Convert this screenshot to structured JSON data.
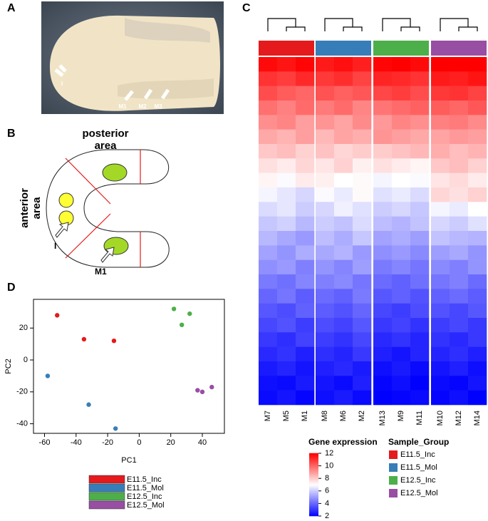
{
  "panel_labels": [
    "A",
    "B",
    "C",
    "D"
  ],
  "photo_labels": [
    "I",
    "M1",
    "M2",
    "M3"
  ],
  "diagram": {
    "posterior": [
      "posterior",
      "area"
    ],
    "anterior": [
      "anterior",
      "area"
    ],
    "incisor": "I",
    "molar": "M1"
  },
  "chart_data": [
    {
      "type": "scatter",
      "xlabel": "PC1",
      "ylabel": "PC2",
      "xlim": [
        -67,
        54
      ],
      "ylim": [
        -46,
        38
      ],
      "xticks": [
        -60,
        -40,
        -20,
        0,
        20,
        40
      ],
      "yticks": [
        -40,
        -20,
        0,
        20
      ],
      "series": [
        {
          "name": "E11.5_Inc",
          "color": "#e41a1c",
          "x": [
            -52,
            -35,
            -16
          ],
          "y": [
            28,
            13,
            12
          ]
        },
        {
          "name": "E11.5_Mol",
          "color": "#377eb8",
          "x": [
            -58,
            -32,
            -15
          ],
          "y": [
            -10,
            -28,
            -43
          ]
        },
        {
          "name": "E12.5_Inc",
          "color": "#4daf4a",
          "x": [
            22,
            32,
            27
          ],
          "y": [
            32,
            29,
            22
          ]
        },
        {
          "name": "E12.5_Mol",
          "color": "#984ea3",
          "x": [
            37,
            40,
            46
          ],
          "y": [
            -19,
            -20,
            -17
          ]
        }
      ]
    },
    {
      "type": "heatmap",
      "legend_title": "Sample_Group",
      "colorbar_title": "Gene expression",
      "clim": [
        2,
        12
      ],
      "cticks": [
        2,
        4,
        6,
        8,
        10,
        12
      ],
      "colors": [
        "#0000ff",
        "#ffffff",
        "#ff0000"
      ],
      "groups": [
        {
          "name": "E11.5_Inc",
          "color": "#e41a1c",
          "columns": [
            "M7",
            "M5",
            "M1"
          ]
        },
        {
          "name": "E11.5_Mol",
          "color": "#377eb8",
          "columns": [
            "M8",
            "M6",
            "M2"
          ]
        },
        {
          "name": "E12.5_Inc",
          "color": "#4daf4a",
          "columns": [
            "M13",
            "M9",
            "M11"
          ]
        },
        {
          "name": "E12.5_Mol",
          "color": "#984ea3",
          "columns": [
            "M10",
            "M12",
            "M14"
          ]
        }
      ],
      "values": [
        [
          11.8,
          11.6,
          11.9,
          11.5,
          11.7,
          11.4,
          11.9,
          12.0,
          11.8,
          12.1,
          12.2,
          12.0
        ],
        [
          11.0,
          10.8,
          11.2,
          10.9,
          11.1,
          10.7,
          11.3,
          11.2,
          11.0,
          11.5,
          11.4,
          11.6
        ],
        [
          10.5,
          10.2,
          10.0,
          10.4,
          10.1,
          10.3,
          10.6,
          10.8,
          10.5,
          10.9,
          11.0,
          10.7
        ],
        [
          9.8,
          9.5,
          9.9,
          9.6,
          9.9,
          9.4,
          9.7,
          9.9,
          10.1,
          10.2,
          10.0,
          10.3
        ],
        [
          9.2,
          9.4,
          8.9,
          9.1,
          8.8,
          9.3,
          9.0,
          9.4,
          9.2,
          9.5,
          9.6,
          9.3
        ],
        [
          8.7,
          8.5,
          8.9,
          8.4,
          8.8,
          8.6,
          9.1,
          8.9,
          8.7,
          8.8,
          9.0,
          8.9
        ],
        [
          8.1,
          8.3,
          7.9,
          8.2,
          7.8,
          8.0,
          8.0,
          8.2,
          8.4,
          8.6,
          8.3,
          8.5
        ],
        [
          7.6,
          7.4,
          7.8,
          7.5,
          7.9,
          7.3,
          7.6,
          7.4,
          7.2,
          8.1,
          8.3,
          7.9
        ],
        [
          7.2,
          6.9,
          7.4,
          7.3,
          7.0,
          7.1,
          6.8,
          7.0,
          6.9,
          7.5,
          7.7,
          7.4
        ],
        [
          6.8,
          6.5,
          6.2,
          6.9,
          6.6,
          7.1,
          6.4,
          6.6,
          6.3,
          7.8,
          7.6,
          7.9
        ],
        [
          6.3,
          6.5,
          6.0,
          6.2,
          6.7,
          6.4,
          6.0,
          6.2,
          5.9,
          6.8,
          6.6,
          7.0
        ],
        [
          5.9,
          6.1,
          5.6,
          6.0,
          5.8,
          6.3,
          5.7,
          5.5,
          5.8,
          6.2,
          6.0,
          6.4
        ],
        [
          5.6,
          5.3,
          5.0,
          5.7,
          5.4,
          5.9,
          5.2,
          5.4,
          5.1,
          5.8,
          5.6,
          5.5
        ],
        [
          5.2,
          4.9,
          5.4,
          5.3,
          5.5,
          5.0,
          4.8,
          5.0,
          4.7,
          5.1,
          5.3,
          4.9
        ],
        [
          4.8,
          5.0,
          4.5,
          4.9,
          4.6,
          5.1,
          4.4,
          4.6,
          4.3,
          4.7,
          4.5,
          4.9
        ],
        [
          4.4,
          4.2,
          4.6,
          4.5,
          4.7,
          4.3,
          4.1,
          3.9,
          4.2,
          4.3,
          4.5,
          4.1
        ],
        [
          4.0,
          4.3,
          3.8,
          4.1,
          3.9,
          4.4,
          3.7,
          3.9,
          3.6,
          3.9,
          4.1,
          3.8
        ],
        [
          3.7,
          3.5,
          3.9,
          3.8,
          3.6,
          4.0,
          3.4,
          3.2,
          3.5,
          3.6,
          3.4,
          3.7
        ],
        [
          3.4,
          3.6,
          3.2,
          3.5,
          3.3,
          3.7,
          3.1,
          3.3,
          3.0,
          3.2,
          3.4,
          3.1
        ],
        [
          3.1,
          2.9,
          3.3,
          3.2,
          3.0,
          3.4,
          2.8,
          3.0,
          2.7,
          3.0,
          2.8,
          3.1
        ],
        [
          2.8,
          3.0,
          2.6,
          2.9,
          2.7,
          3.1,
          2.6,
          2.4,
          2.7,
          2.7,
          2.9,
          2.6
        ],
        [
          2.5,
          2.7,
          2.4,
          2.6,
          2.8,
          2.5,
          2.3,
          2.5,
          2.2,
          2.4,
          2.6,
          2.3
        ],
        [
          2.3,
          2.2,
          2.5,
          2.4,
          2.2,
          2.6,
          2.1,
          2.3,
          2.0,
          2.2,
          2.1,
          2.4
        ],
        [
          2.2,
          2.4,
          2.1,
          2.3,
          2.5,
          2.2,
          2.0,
          2.1,
          2.2,
          2.1,
          2.3,
          2.0
        ]
      ]
    }
  ]
}
